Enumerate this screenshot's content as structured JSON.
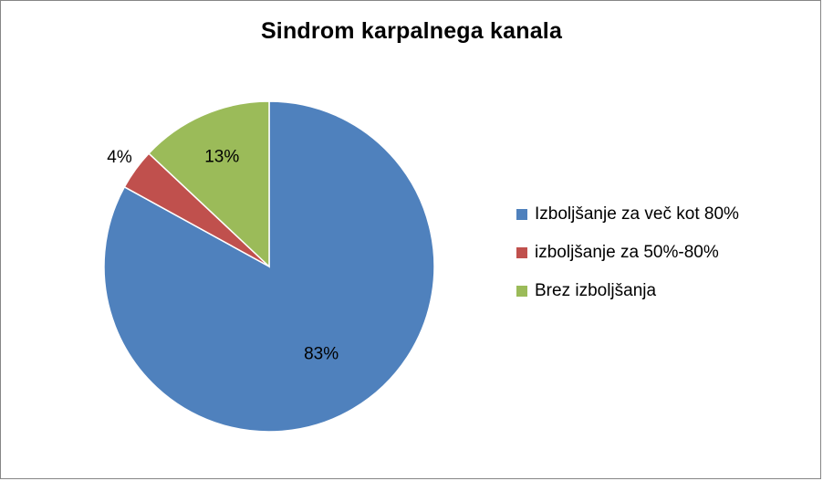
{
  "chart_data": {
    "type": "pie",
    "title": "Sindrom karpalnega kanala",
    "categories": [
      "Izboljšanje za več kot 80%",
      "izboljšanje za 50%-80%",
      "Brez izboljšanja"
    ],
    "values": [
      83,
      4,
      13
    ],
    "data_labels": [
      "83%",
      "4%",
      "13%"
    ],
    "colors": [
      "#4F81BD",
      "#C0504D",
      "#9BBB59"
    ],
    "legend_position": "right",
    "start_angle": "12 o'clock",
    "direction": "clockwise"
  }
}
